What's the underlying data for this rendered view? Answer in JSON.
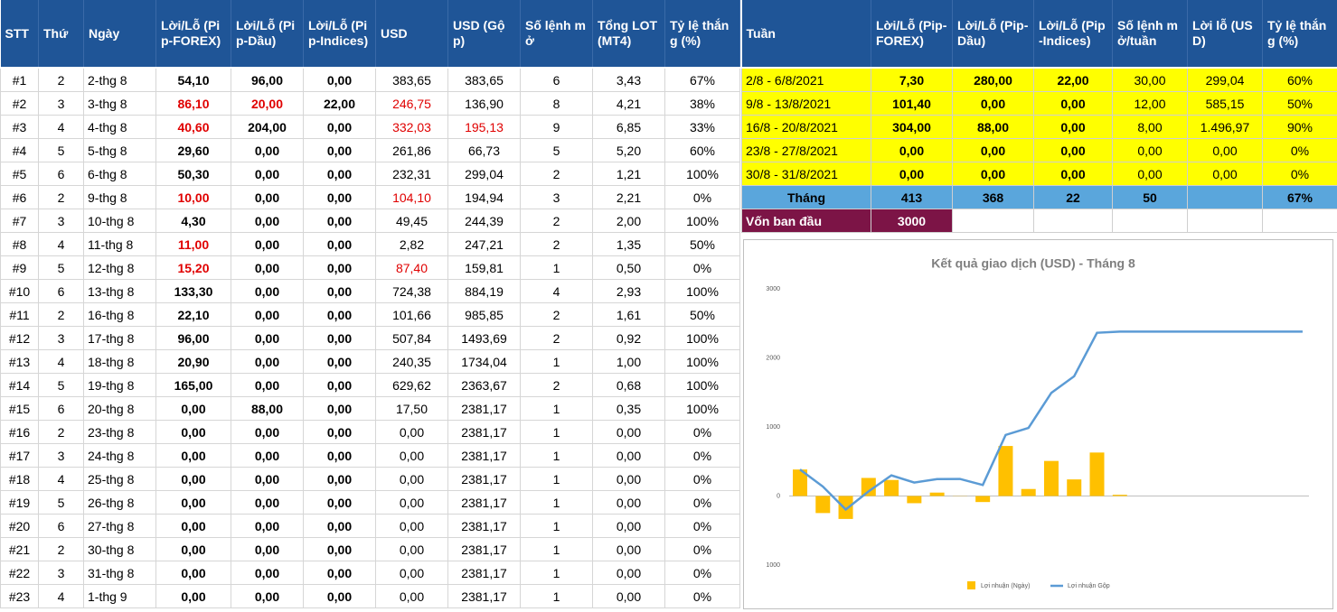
{
  "left_table": {
    "headers": [
      "STT",
      "Thứ",
      "Ngày",
      "Lời/Lỗ (Pip-FOREX)",
      "Lời/Lỗ (Pip-Dầu)",
      "Lời/Lỗ (Pip-Indices)",
      "USD",
      "USD (Gộp)",
      "Số lệnh mở",
      "Tổng LOT (MT4)",
      "Tỷ lệ thắng (%)"
    ],
    "rows": [
      [
        "#1",
        "2",
        "2-thg 8",
        "54,10",
        "96,00",
        "0,00",
        "383,65",
        "383,65",
        "6",
        "3,43",
        "67%"
      ],
      [
        "#2",
        "3",
        "3-thg 8",
        "86,10",
        "20,00",
        "22,00",
        "246,75",
        "136,90",
        "8",
        "4,21",
        "38%"
      ],
      [
        "#3",
        "4",
        "4-thg 8",
        "40,60",
        "204,00",
        "0,00",
        "332,03",
        "195,13",
        "9",
        "6,85",
        "33%"
      ],
      [
        "#4",
        "5",
        "5-thg 8",
        "29,60",
        "0,00",
        "0,00",
        "261,86",
        "66,73",
        "5",
        "5,20",
        "60%"
      ],
      [
        "#5",
        "6",
        "6-thg 8",
        "50,30",
        "0,00",
        "0,00",
        "232,31",
        "299,04",
        "2",
        "1,21",
        "100%"
      ],
      [
        "#6",
        "2",
        "9-thg 8",
        "10,00",
        "0,00",
        "0,00",
        "104,10",
        "194,94",
        "3",
        "2,21",
        "0%"
      ],
      [
        "#7",
        "3",
        "10-thg 8",
        "4,30",
        "0,00",
        "0,00",
        "49,45",
        "244,39",
        "2",
        "2,00",
        "100%"
      ],
      [
        "#8",
        "4",
        "11-thg 8",
        "11,00",
        "0,00",
        "0,00",
        "2,82",
        "247,21",
        "2",
        "1,35",
        "50%"
      ],
      [
        "#9",
        "5",
        "12-thg 8",
        "15,20",
        "0,00",
        "0,00",
        "87,40",
        "159,81",
        "1",
        "0,50",
        "0%"
      ],
      [
        "#10",
        "6",
        "13-thg 8",
        "133,30",
        "0,00",
        "0,00",
        "724,38",
        "884,19",
        "4",
        "2,93",
        "100%"
      ],
      [
        "#11",
        "2",
        "16-thg 8",
        "22,10",
        "0,00",
        "0,00",
        "101,66",
        "985,85",
        "2",
        "1,61",
        "50%"
      ],
      [
        "#12",
        "3",
        "17-thg 8",
        "96,00",
        "0,00",
        "0,00",
        "507,84",
        "1493,69",
        "2",
        "0,92",
        "100%"
      ],
      [
        "#13",
        "4",
        "18-thg 8",
        "20,90",
        "0,00",
        "0,00",
        "240,35",
        "1734,04",
        "1",
        "1,00",
        "100%"
      ],
      [
        "#14",
        "5",
        "19-thg 8",
        "165,00",
        "0,00",
        "0,00",
        "629,62",
        "2363,67",
        "2",
        "0,68",
        "100%"
      ],
      [
        "#15",
        "6",
        "20-thg 8",
        "0,00",
        "88,00",
        "0,00",
        "17,50",
        "2381,17",
        "1",
        "0,35",
        "100%"
      ],
      [
        "#16",
        "2",
        "23-thg 8",
        "0,00",
        "0,00",
        "0,00",
        "0,00",
        "2381,17",
        "1",
        "0,00",
        "0%"
      ],
      [
        "#17",
        "3",
        "24-thg 8",
        "0,00",
        "0,00",
        "0,00",
        "0,00",
        "2381,17",
        "1",
        "0,00",
        "0%"
      ],
      [
        "#18",
        "4",
        "25-thg 8",
        "0,00",
        "0,00",
        "0,00",
        "0,00",
        "2381,17",
        "1",
        "0,00",
        "0%"
      ],
      [
        "#19",
        "5",
        "26-thg 8",
        "0,00",
        "0,00",
        "0,00",
        "0,00",
        "2381,17",
        "1",
        "0,00",
        "0%"
      ],
      [
        "#20",
        "6",
        "27-thg 8",
        "0,00",
        "0,00",
        "0,00",
        "0,00",
        "2381,17",
        "1",
        "0,00",
        "0%"
      ],
      [
        "#21",
        "2",
        "30-thg 8",
        "0,00",
        "0,00",
        "0,00",
        "0,00",
        "2381,17",
        "1",
        "0,00",
        "0%"
      ],
      [
        "#22",
        "3",
        "31-thg 8",
        "0,00",
        "0,00",
        "0,00",
        "0,00",
        "2381,17",
        "1",
        "0,00",
        "0%"
      ],
      [
        "#23",
        "4",
        "1-thg 9",
        "0,00",
        "0,00",
        "0,00",
        "0,00",
        "2381,17",
        "1",
        "0,00",
        "0%"
      ]
    ],
    "red_cells": [
      "1.3",
      "1.4",
      "1.6",
      "2.3",
      "2.6",
      "2.7",
      "5.3",
      "5.6",
      "7.3",
      "8.3",
      "8.6"
    ]
  },
  "right_table": {
    "headers": [
      "Tuần",
      "Lời/Lỗ (Pip-FOREX)",
      "Lời/Lỗ (Pip-Dầu)",
      "Lời/Lỗ (Pip-Indices)",
      "Số lệnh mở/tuần",
      "Lời lỗ (USD)",
      "Tỷ lệ thắng (%)"
    ],
    "rows": [
      [
        "2/8 - 6/8/2021",
        "7,30",
        "280,00",
        "22,00",
        "30,00",
        "299,04",
        "60%"
      ],
      [
        "9/8 - 13/8/2021",
        "101,40",
        "0,00",
        "0,00",
        "12,00",
        "585,15",
        "50%"
      ],
      [
        "16/8 - 20/8/2021",
        "304,00",
        "88,00",
        "0,00",
        "8,00",
        "1.496,97",
        "90%"
      ],
      [
        "23/8 - 27/8/2021",
        "0,00",
        "0,00",
        "0,00",
        "0,00",
        "0,00",
        "0%"
      ],
      [
        "30/8 - 31/8/2021",
        "0,00",
        "0,00",
        "0,00",
        "0,00",
        "0,00",
        "0%"
      ]
    ],
    "total": {
      "label": "Tháng",
      "forex": "413",
      "dau": "368",
      "indices": "22",
      "orders": "50",
      "win": "67%"
    },
    "capital": {
      "label": "Vốn ban đầu",
      "value": "3000"
    }
  },
  "chart_data": {
    "type": "combo",
    "title": "Kết quả giao dịch (USD) - Tháng 8",
    "categories": [
      null,
      null,
      null,
      null,
      null,
      null,
      null,
      null,
      null,
      null,
      null,
      null,
      null,
      null,
      null,
      null,
      null,
      null,
      null,
      null,
      null,
      null,
      null
    ],
    "series": [
      {
        "name": "Lợi nhuận (Ngày)",
        "type": "bar",
        "color": "#ffc000",
        "values": [
          383.65,
          -246.75,
          -332.03,
          261.86,
          232.31,
          -104.1,
          49.45,
          2.82,
          -87.4,
          724.38,
          101.66,
          507.84,
          240.35,
          629.62,
          17.5,
          0,
          0,
          0,
          0,
          0,
          0,
          0,
          0
        ]
      },
      {
        "name": "Lợi nhuận Gộp",
        "type": "line",
        "color": "#5b9bd5",
        "values": [
          383.65,
          136.9,
          -195.13,
          66.73,
          299.04,
          194.94,
          244.39,
          247.21,
          159.81,
          884.19,
          985.85,
          1493.69,
          1734.04,
          2363.67,
          2381.17,
          2381.17,
          2381.17,
          2381.17,
          2381.17,
          2381.17,
          2381.17,
          2381.17,
          2381.17
        ]
      }
    ],
    "ylim": [
      -1000,
      3000
    ],
    "yticks": [
      {
        "value": -1000,
        "label": "1000"
      },
      0,
      1000,
      2000,
      3000
    ],
    "grid": false
  }
}
